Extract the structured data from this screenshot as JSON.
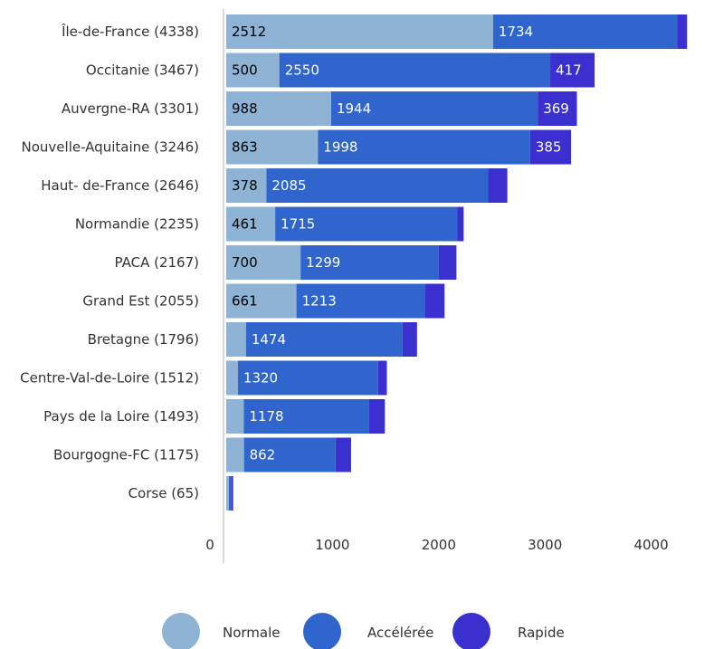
{
  "chart_data": {
    "type": "bar",
    "orientation": "horizontal",
    "stacked": true,
    "categories": [
      "Île-de-France (4338)",
      "Occitanie (3467)",
      "Auvergne-RA (3301)",
      "Nouvelle-Aquitaine (3246)",
      "Haut- de-France (2646)",
      "Normandie (2235)",
      "PACA (2167)",
      "Grand Est (2055)",
      "Bretagne (1796)",
      "Centre-Val-de-Loire (1512)",
      "Pays de la Loire (1493)",
      "Bourgogne-FC (1175)",
      "Corse (65)"
    ],
    "series": [
      {
        "name": "Normale",
        "color": "#8fb3d4",
        "text_color": "#000000",
        "values": [
          2512,
          500,
          988,
          863,
          378,
          461,
          700,
          661,
          186,
          110,
          165,
          167,
          25
        ],
        "labels": [
          "2512",
          "500",
          "988",
          "863",
          "378",
          "461",
          "700",
          "661",
          "",
          "",
          "",
          "",
          ""
        ]
      },
      {
        "name": "Accélérée",
        "color": "#2f65cc",
        "text_color": "#ffffff",
        "values": [
          1734,
          2550,
          1944,
          1998,
          2085,
          1715,
          1299,
          1213,
          1474,
          1320,
          1178,
          862,
          24
        ],
        "labels": [
          "1734",
          "2550",
          "1944",
          "1998",
          "2085",
          "1715",
          "1299",
          "1213",
          "1474",
          "1320",
          "1178",
          "862",
          ""
        ]
      },
      {
        "name": "Rapide",
        "color": "#3a2fcf",
        "text_color": "#ffffff",
        "values": [
          92,
          417,
          369,
          385,
          183,
          59,
          168,
          181,
          136,
          82,
          150,
          146,
          16
        ],
        "labels": [
          "",
          "417",
          "369",
          "385",
          "",
          "",
          "",
          "",
          "",
          "",
          "",
          "",
          ""
        ]
      }
    ],
    "xlim": [
      0,
      4600
    ],
    "xticks": [
      0,
      1000,
      2000,
      3000,
      4000
    ],
    "xtick_labels": [
      "0",
      "1000",
      "2000",
      "3000",
      "4000"
    ],
    "grid": false,
    "legend_position": "bottom"
  }
}
